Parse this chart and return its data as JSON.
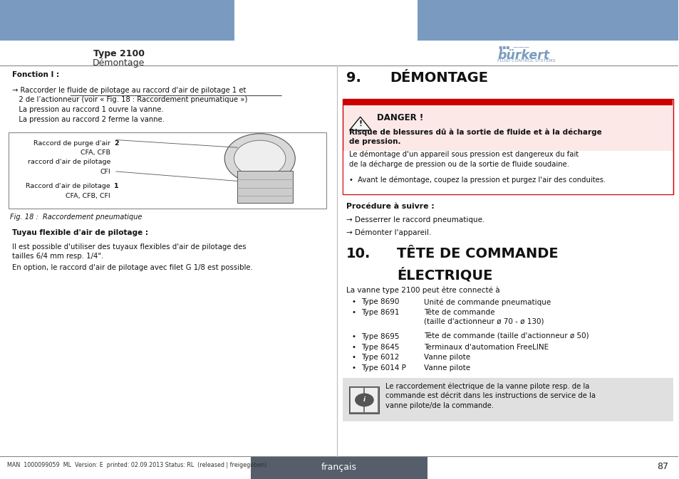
{
  "bg_color": "#ffffff",
  "header_bar_color": "#7a9bbf",
  "header_text_left": "Type 2100",
  "header_subtext_left": "Démontage",
  "page_number": "87",
  "footer_lang": "français",
  "footer_bg": "#555e6a",
  "footer_text_color": "#ffffff",
  "footer_meta": "MAN  1000099059  ML  Version: E  printed: 02.09.2013 Status: RL  (released | freigegeben)",
  "danger_title": "DANGER !",
  "danger_pink_bg": "#fde8e8",
  "danger_red_bar": "#cc0000",
  "danger_bold": "Risque de blessures dû à la sortie de fluide et à la décharge\nde pression.",
  "danger_text1": "Le démontage d'un appareil sous pression est dangereux du fait\nde la décharge de pression ou de la sortie de fluide soudaine.",
  "danger_bullet": "•  Avant le démontage, coupez la pression et purgez l'air des conduites.",
  "procedure_title": "Procédure à suivre :",
  "procedure_steps": [
    "→ Desserrer le raccord pneumatique.",
    "→ Démonter l'appareil."
  ],
  "section10_intro": "La vanne type 2100 peut être connecté à",
  "section10_bullets": [
    [
      "Type 8690",
      "Unité de commande pneumatique"
    ],
    [
      "Type 8691",
      "Tête de commande\n(taille d'actionneur ø 70 - ø 130)"
    ],
    [
      "Type 8695",
      "Tête de commande (taille d'actionneur ø 50)"
    ],
    [
      "Type 8645",
      "Terminaux d'automation FreeLINE"
    ],
    [
      "Type 6012",
      "Vanne pilote"
    ],
    [
      "Type 6014 P",
      "Vanne pilote"
    ]
  ],
  "info_text": "Le raccordement électrique de la vanne pilote resp. de la\ncommande est décrit dans les instructions de service de la\nvanne pilote/de la commande.",
  "fig_caption": "Fig. 18 :  Raccordement pneumatique",
  "tuyau_title": "Tuyau flexible d'air de pilotage :",
  "tuyau_text1": "Il est possible d'utiliser des tuyaux flexibles d'air de pilotage des\ntailles 6/4 mm resp. 1/4\".",
  "tuyau_text2": "En option, le raccord d'air de pilotage avec filet G 1/8 est possible."
}
